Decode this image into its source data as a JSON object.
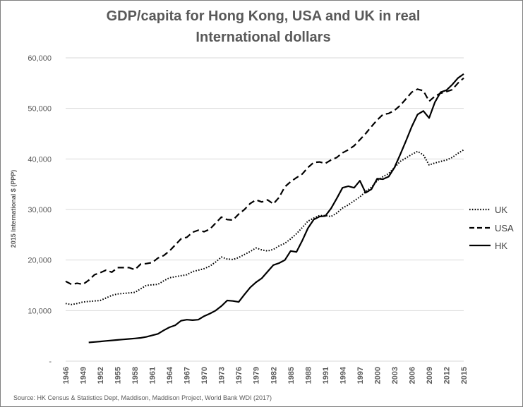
{
  "chart_data": {
    "type": "line",
    "title_lines": [
      "GDP/capita for Hong Kong, USA and UK in real",
      "International dollars"
    ],
    "ylabel": "2015 International  $ (PPP)",
    "xlabel": "",
    "ylim": [
      0,
      60000
    ],
    "yticks": [
      0,
      10000,
      20000,
      30000,
      40000,
      50000,
      60000
    ],
    "ytick_labels": [
      "-",
      "10,000",
      "20,000",
      "30,000",
      "40,000",
      "50,000",
      "60,000"
    ],
    "xlim": [
      1946,
      2015
    ],
    "xtick_labels": [
      "1946",
      "1949",
      "1952",
      "1955",
      "1958",
      "1961",
      "1964",
      "1967",
      "1970",
      "1973",
      "1976",
      "1979",
      "1982",
      "1985",
      "1988",
      "1991",
      "1994",
      "1997",
      "2000",
      "2003",
      "2006",
      "2009",
      "2012",
      "2015"
    ],
    "grid": "horizontal",
    "legend_position": "right",
    "source": "Source:  HK Census & Statistics  Dept,  Maddison,  Maddison Project,  World  Bank WDI (2017)",
    "x": [
      1946,
      1947,
      1948,
      1949,
      1950,
      1951,
      1952,
      1953,
      1954,
      1955,
      1956,
      1957,
      1958,
      1959,
      1960,
      1961,
      1962,
      1963,
      1964,
      1965,
      1966,
      1967,
      1968,
      1969,
      1970,
      1971,
      1972,
      1973,
      1974,
      1975,
      1976,
      1977,
      1978,
      1979,
      1980,
      1981,
      1982,
      1983,
      1984,
      1985,
      1986,
      1987,
      1988,
      1989,
      1990,
      1991,
      1992,
      1993,
      1994,
      1995,
      1996,
      1997,
      1998,
      1999,
      2000,
      2001,
      2002,
      2003,
      2004,
      2005,
      2006,
      2007,
      2008,
      2009,
      2010,
      2011,
      2012,
      2013,
      2014,
      2015
    ],
    "series": [
      {
        "name": "UK",
        "style": "dotted",
        "color": "#000000",
        "values": [
          11400,
          11200,
          11400,
          11700,
          11800,
          11900,
          12000,
          12500,
          13000,
          13300,
          13400,
          13500,
          13600,
          14300,
          15000,
          15100,
          15200,
          15900,
          16500,
          16700,
          16900,
          17100,
          17700,
          18000,
          18300,
          18800,
          19600,
          20600,
          20200,
          20100,
          20500,
          21100,
          21700,
          22400,
          22000,
          21800,
          22100,
          22800,
          23300,
          24200,
          25200,
          26400,
          27700,
          28300,
          28800,
          28800,
          28600,
          29300,
          30300,
          30900,
          31700,
          32500,
          33500,
          34400,
          35700,
          36500,
          37100,
          38300,
          39500,
          40200,
          40900,
          41500,
          40800,
          38800,
          39200,
          39500,
          39800,
          40300,
          41100,
          41800
        ]
      },
      {
        "name": "USA",
        "style": "dashed",
        "color": "#000000",
        "values": [
          15800,
          15200,
          15400,
          15200,
          16000,
          17100,
          17500,
          18000,
          17600,
          18500,
          18500,
          18500,
          18100,
          19200,
          19300,
          19500,
          20400,
          20900,
          21800,
          23000,
          24200,
          24500,
          25500,
          25900,
          25600,
          26100,
          27300,
          28500,
          28000,
          27900,
          29100,
          30000,
          31200,
          31900,
          31500,
          31900,
          31100,
          32400,
          34500,
          35500,
          36300,
          37000,
          38300,
          39300,
          39400,
          39100,
          39800,
          40300,
          41200,
          41800,
          42600,
          43800,
          45000,
          46400,
          47700,
          48800,
          49000,
          49600,
          50600,
          51900,
          53200,
          53800,
          53500,
          51400,
          52400,
          53000,
          53300,
          53700,
          55000,
          56000
        ]
      },
      {
        "name": "HK",
        "style": "solid",
        "color": "#000000",
        "values": [
          null,
          null,
          null,
          null,
          3700,
          3800,
          3900,
          4000,
          4100,
          4200,
          4300,
          4400,
          4500,
          4600,
          4800,
          5100,
          5400,
          6100,
          6700,
          7100,
          8000,
          8200,
          8100,
          8200,
          8900,
          9400,
          10000,
          10900,
          12000,
          11900,
          11700,
          13200,
          14600,
          15600,
          16400,
          17700,
          19000,
          19400,
          20000,
          21800,
          21600,
          23800,
          26300,
          28000,
          28600,
          28700,
          30200,
          32200,
          34300,
          34600,
          34300,
          35700,
          33300,
          34000,
          36100,
          36000,
          36500,
          38300,
          40900,
          43600,
          46400,
          48800,
          49500,
          48100,
          51200,
          53200,
          53600,
          54700,
          56000,
          56800
        ]
      }
    ]
  }
}
